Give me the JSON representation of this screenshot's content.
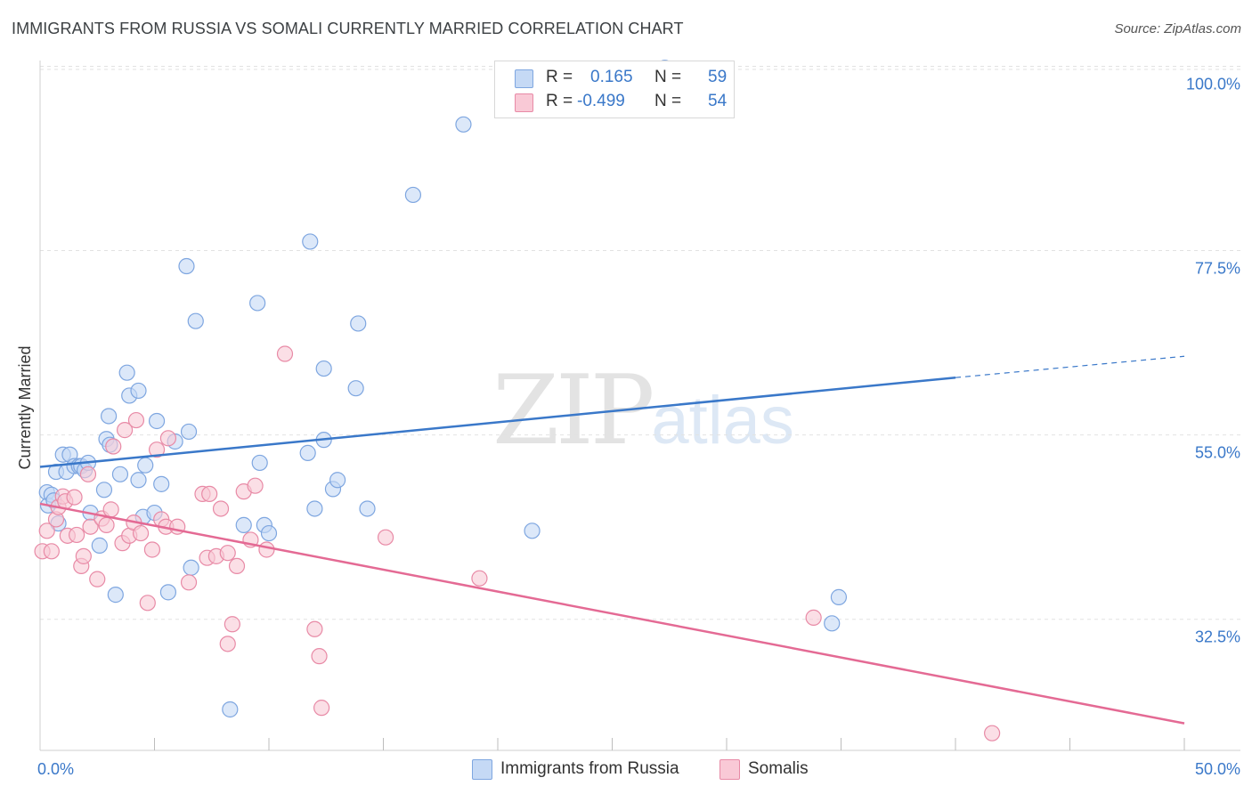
{
  "title": "IMMIGRANTS FROM RUSSIA VS SOMALI CURRENTLY MARRIED CORRELATION CHART",
  "source": "Source: ZipAtlas.com",
  "watermark": {
    "part1": "ZIP",
    "part2": "atlas"
  },
  "legend": {
    "rows": [
      {
        "r_label": "R = ",
        "r_value": "0.165",
        "n_label": "N = ",
        "n_value": "59"
      },
      {
        "r_label": "R = ",
        "r_value": "-0.499",
        "n_label": "N = ",
        "n_value": "54"
      }
    ]
  },
  "series_labels": {
    "blue": "Immigrants from Russia",
    "pink": "Somalis"
  },
  "colors": {
    "blue_fill": "#c5d9f5",
    "blue_stroke": "#7ea6e0",
    "blue_line": "#3a78c9",
    "pink_fill": "#f9c9d6",
    "pink_stroke": "#e88aa6",
    "pink_line": "#e46a94",
    "grid": "#e2e2e2",
    "axis_text": "#3a78c9"
  },
  "chart_data": {
    "type": "scatter",
    "title": "IMMIGRANTS FROM RUSSIA VS SOMALI CURRENTLY MARRIED CORRELATION CHART",
    "xlabel": "",
    "ylabel": "Currently Married",
    "xlim": [
      0,
      50
    ],
    "ylim": [
      16.5,
      100.7
    ],
    "x_tick_labels": [
      {
        "value": 0,
        "label": "0.0%"
      },
      {
        "value": 50,
        "label": "50.0%"
      }
    ],
    "y_tick_labels": [
      {
        "value": 32.5,
        "label": "32.5%"
      },
      {
        "value": 55.0,
        "label": "55.0%"
      },
      {
        "value": 77.5,
        "label": "77.5%"
      },
      {
        "value": 100.0,
        "label": "100.0%"
      }
    ],
    "series": [
      {
        "name": "Immigrants from Russia",
        "color": "#3a78c9",
        "points": [
          [
            0.3,
            48.0
          ],
          [
            0.35,
            46.4
          ],
          [
            0.5,
            47.7
          ],
          [
            0.6,
            47.0
          ],
          [
            0.7,
            50.5
          ],
          [
            0.8,
            44.2
          ],
          [
            1.0,
            52.6
          ],
          [
            1.15,
            50.5
          ],
          [
            1.3,
            52.6
          ],
          [
            1.5,
            51.2
          ],
          [
            1.7,
            51.2
          ],
          [
            1.8,
            51.2
          ],
          [
            1.95,
            50.7
          ],
          [
            2.1,
            51.6
          ],
          [
            2.2,
            45.5
          ],
          [
            2.6,
            41.5
          ],
          [
            2.8,
            48.3
          ],
          [
            2.9,
            54.5
          ],
          [
            3.0,
            57.3
          ],
          [
            3.05,
            53.8
          ],
          [
            3.3,
            35.5
          ],
          [
            3.5,
            50.2
          ],
          [
            3.8,
            62.6
          ],
          [
            3.9,
            59.8
          ],
          [
            4.3,
            49.5
          ],
          [
            4.3,
            60.4
          ],
          [
            4.5,
            45.0
          ],
          [
            4.6,
            51.3
          ],
          [
            5.0,
            45.5
          ],
          [
            5.1,
            56.7
          ],
          [
            5.3,
            49.0
          ],
          [
            5.6,
            35.8
          ],
          [
            5.9,
            54.2
          ],
          [
            6.5,
            55.4
          ],
          [
            6.4,
            75.6
          ],
          [
            6.6,
            38.8
          ],
          [
            6.8,
            68.9
          ],
          [
            8.3,
            21.5
          ],
          [
            8.9,
            44.0
          ],
          [
            9.5,
            71.1
          ],
          [
            9.6,
            51.6
          ],
          [
            9.8,
            44.0
          ],
          [
            10.0,
            43.0
          ],
          [
            11.7,
            52.8
          ],
          [
            11.8,
            78.6
          ],
          [
            12.0,
            46.0
          ],
          [
            12.4,
            63.1
          ],
          [
            12.4,
            54.4
          ],
          [
            12.8,
            48.4
          ],
          [
            13.0,
            49.5
          ],
          [
            13.8,
            60.7
          ],
          [
            13.9,
            68.6
          ],
          [
            14.3,
            46.0
          ],
          [
            16.3,
            84.3
          ],
          [
            18.5,
            92.9
          ],
          [
            21.5,
            43.3
          ],
          [
            27.3,
            99.8
          ],
          [
            34.9,
            35.2
          ],
          [
            34.6,
            32.0
          ]
        ]
      },
      {
        "name": "Somalis",
        "color": "#e46a94",
        "points": [
          [
            0.1,
            40.8
          ],
          [
            0.3,
            43.3
          ],
          [
            0.5,
            40.8
          ],
          [
            0.7,
            44.7
          ],
          [
            0.8,
            46.2
          ],
          [
            1.0,
            47.5
          ],
          [
            1.1,
            46.9
          ],
          [
            1.2,
            42.7
          ],
          [
            1.5,
            47.4
          ],
          [
            1.6,
            42.8
          ],
          [
            1.8,
            39.0
          ],
          [
            1.9,
            40.2
          ],
          [
            2.1,
            50.2
          ],
          [
            2.2,
            43.8
          ],
          [
            2.5,
            37.4
          ],
          [
            2.7,
            44.8
          ],
          [
            2.9,
            44.0
          ],
          [
            3.1,
            45.9
          ],
          [
            3.2,
            53.6
          ],
          [
            3.6,
            41.8
          ],
          [
            3.7,
            55.6
          ],
          [
            3.9,
            42.7
          ],
          [
            4.1,
            44.3
          ],
          [
            4.2,
            56.8
          ],
          [
            4.4,
            43.0
          ],
          [
            4.7,
            34.5
          ],
          [
            4.9,
            41.0
          ],
          [
            5.1,
            53.2
          ],
          [
            5.3,
            44.7
          ],
          [
            5.5,
            43.8
          ],
          [
            5.6,
            54.6
          ],
          [
            6.0,
            43.8
          ],
          [
            6.5,
            37.0
          ],
          [
            7.1,
            47.8
          ],
          [
            7.4,
            47.8
          ],
          [
            7.3,
            40.0
          ],
          [
            7.7,
            40.2
          ],
          [
            7.9,
            46.0
          ],
          [
            8.2,
            40.6
          ],
          [
            8.2,
            29.5
          ],
          [
            8.4,
            31.9
          ],
          [
            8.6,
            39.0
          ],
          [
            8.9,
            48.1
          ],
          [
            9.2,
            42.2
          ],
          [
            9.4,
            48.8
          ],
          [
            9.9,
            41.0
          ],
          [
            10.7,
            64.9
          ],
          [
            12.0,
            31.3
          ],
          [
            12.2,
            28.0
          ],
          [
            12.3,
            21.7
          ],
          [
            15.1,
            42.5
          ],
          [
            19.2,
            37.5
          ],
          [
            33.8,
            32.7
          ],
          [
            41.6,
            18.6
          ]
        ]
      }
    ],
    "trend_lines": [
      {
        "series": "Immigrants from Russia",
        "x_start": 0,
        "y_start": 51.1,
        "x_end": 40,
        "y_end": 62.0,
        "dashed_to_x": 50,
        "dashed_to_y": 64.6
      },
      {
        "series": "Somalis",
        "x_start": 0,
        "y_start": 46.6,
        "x_end": 50,
        "y_end": 19.8
      }
    ]
  }
}
